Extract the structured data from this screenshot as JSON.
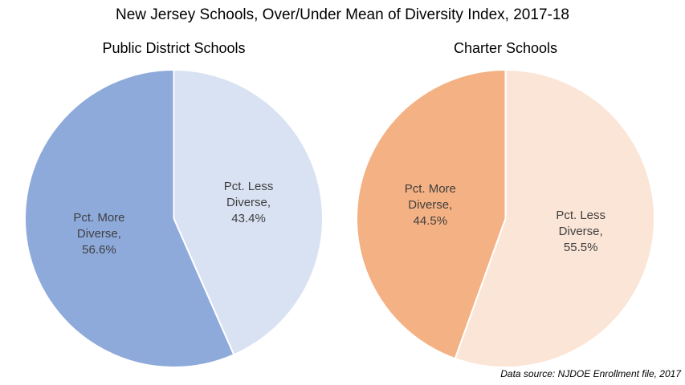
{
  "title": "New Jersey Schools, Over/Under Mean of Diversity Index, 2017-18",
  "footer": "Data source: NJDOE Enrollment file, 2017",
  "colors": {
    "background": "#ffffff",
    "slice_border": "#ffffff",
    "label_text": "#3F3F3F",
    "title_text": "#000000",
    "blue_dark": "#8EAADB",
    "blue_light": "#D9E2F2",
    "orange_dark": "#F4B183",
    "orange_light": "#FBE5D6"
  },
  "chart_data": [
    {
      "type": "pie",
      "title": "Public District Schools",
      "start_angle_deg": 0,
      "direction": "clockwise",
      "legend": "none",
      "slices": [
        {
          "name": "Pct. Less Diverse",
          "value_pct": 43.4,
          "color": "#D9E2F2",
          "label_lines": [
            "Pct. Less",
            "Diverse,",
            "43.4%"
          ]
        },
        {
          "name": "Pct. More Diverse",
          "value_pct": 56.6,
          "color": "#8EAADB",
          "label_lines": [
            "Pct. More",
            "Diverse,",
            "56.6%"
          ]
        }
      ]
    },
    {
      "type": "pie",
      "title": "Charter Schools",
      "start_angle_deg": 0,
      "direction": "clockwise",
      "legend": "none",
      "slices": [
        {
          "name": "Pct. Less Diverse",
          "value_pct": 55.5,
          "color": "#FBE5D6",
          "label_lines": [
            "Pct. Less",
            "Diverse,",
            "55.5%"
          ]
        },
        {
          "name": "Pct. More Diverse",
          "value_pct": 44.5,
          "color": "#F4B183",
          "label_lines": [
            "Pct. More",
            "Diverse,",
            "44.5%"
          ]
        }
      ]
    }
  ]
}
